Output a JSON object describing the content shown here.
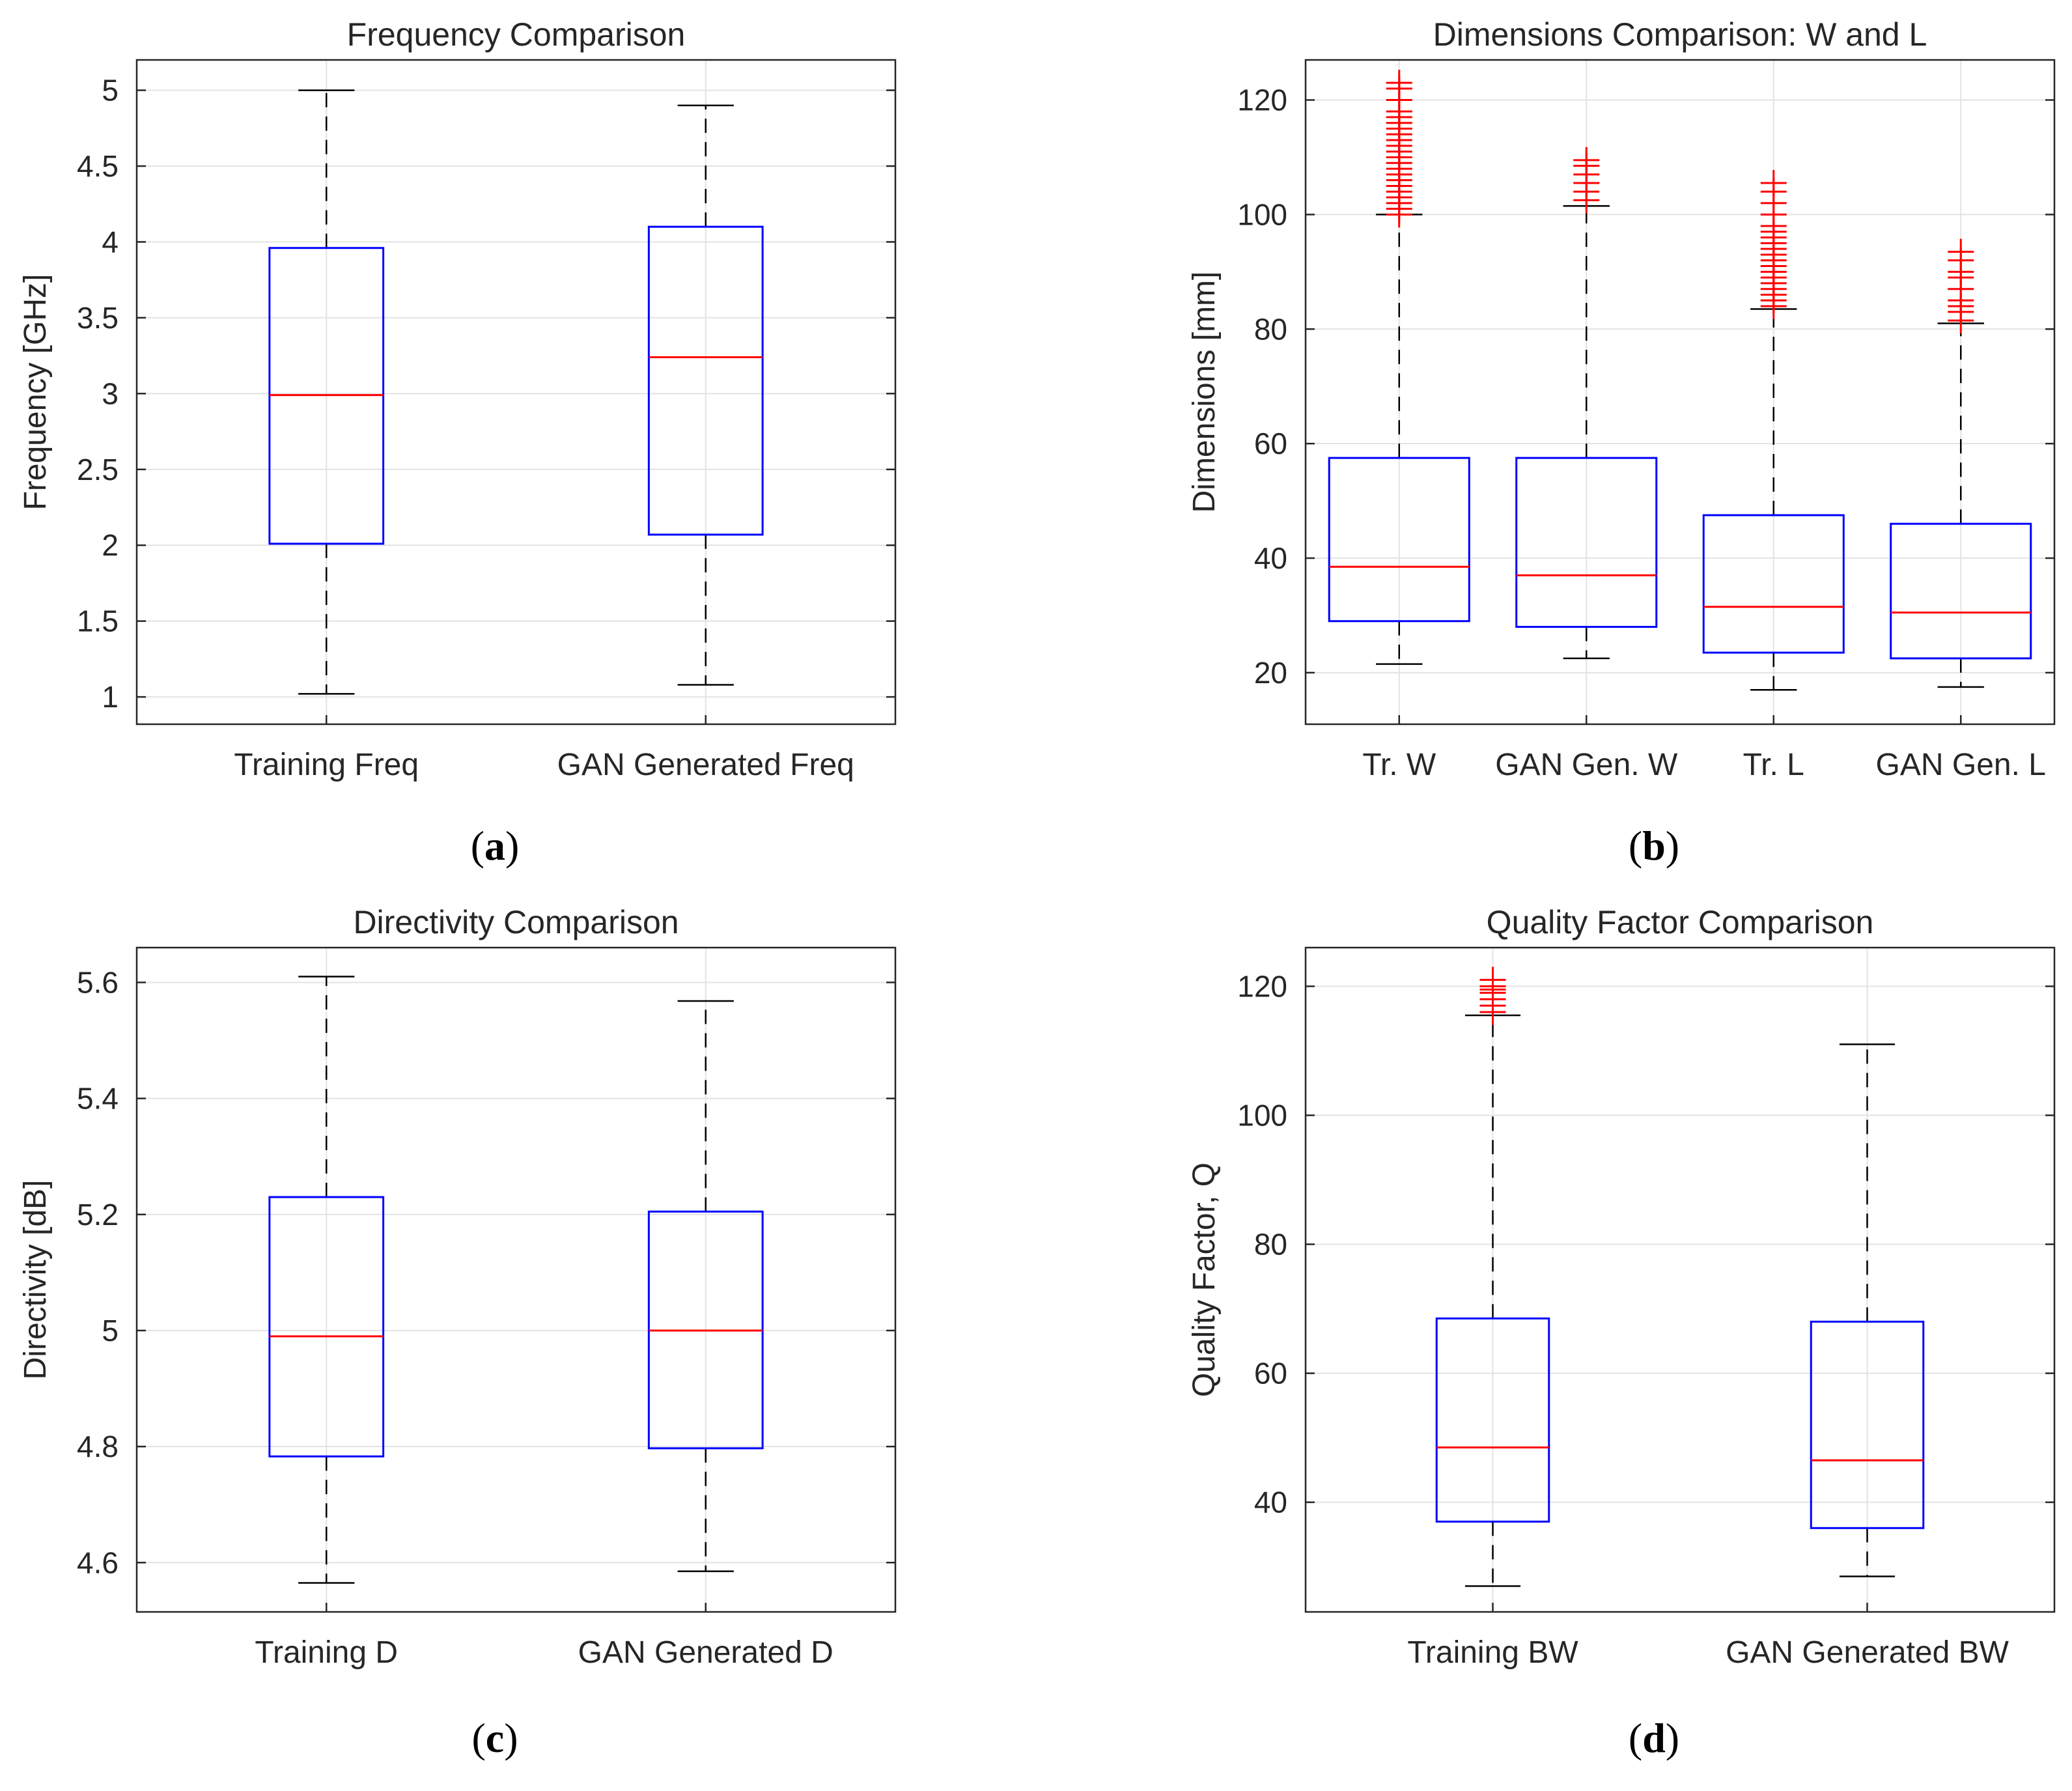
{
  "colors": {
    "box": "#0000ff",
    "median": "#ff0000",
    "outlier": "#ff0000",
    "whisker": "#000000",
    "grid": "#e3e3e3",
    "axes": "#262626"
  },
  "chart_data": [
    {
      "type": "boxplot",
      "title": "Frequency Comparison",
      "ylabel": "Frequency [GHz]",
      "ylim": [
        0.82,
        5.2
      ],
      "yticks": [
        1,
        1.5,
        2,
        2.5,
        3,
        3.5,
        4,
        4.5,
        5
      ],
      "ytick_labels": [
        "1",
        "1.5",
        "2",
        "2.5",
        "3",
        "3.5",
        "4",
        "4.5",
        "5"
      ],
      "grid": true,
      "caption": "a",
      "categories": [
        "Training Freq",
        "GAN Generated Freq"
      ],
      "boxes": [
        {
          "whisker_low": 1.02,
          "q1": 2.01,
          "median": 2.99,
          "q3": 3.96,
          "whisker_high": 5.0,
          "outliers": []
        },
        {
          "whisker_low": 1.08,
          "q1": 2.07,
          "median": 3.24,
          "q3": 4.1,
          "whisker_high": 4.9,
          "outliers": []
        }
      ]
    },
    {
      "type": "boxplot",
      "title": "Dimensions Comparison: W and L",
      "ylabel": "Dimensions [mm]",
      "ylim": [
        11,
        127
      ],
      "yticks": [
        20,
        40,
        60,
        80,
        100,
        120
      ],
      "ytick_labels": [
        "20",
        "40",
        "60",
        "80",
        "100",
        "120"
      ],
      "grid": true,
      "caption": "b",
      "categories": [
        "Tr. W",
        "GAN Gen. W",
        "Tr. L",
        "GAN Gen. L"
      ],
      "boxes": [
        {
          "whisker_low": 21.5,
          "q1": 29,
          "median": 38.5,
          "q3": 57.5,
          "whisker_high": 100,
          "outliers": [
            100,
            101,
            102,
            103,
            104,
            105,
            106,
            107,
            108,
            109,
            110,
            111,
            112,
            113,
            114,
            115,
            116,
            117,
            118,
            120,
            122,
            123
          ]
        },
        {
          "whisker_low": 22.5,
          "q1": 28,
          "median": 37,
          "q3": 57.5,
          "whisker_high": 101.5,
          "outliers": [
            102.5,
            104,
            105.5,
            107,
            108.5,
            109.5
          ]
        },
        {
          "whisker_low": 17,
          "q1": 23.5,
          "median": 31.5,
          "q3": 47.5,
          "whisker_high": 83.5,
          "outliers": [
            84,
            85,
            86,
            87,
            88,
            89,
            90,
            91,
            92,
            93,
            94,
            95,
            96,
            97,
            98,
            100,
            102,
            104,
            105.5
          ]
        },
        {
          "whisker_low": 17.5,
          "q1": 22.5,
          "median": 30.5,
          "q3": 46,
          "whisker_high": 81,
          "outliers": [
            81.5,
            83,
            84,
            85,
            87,
            89,
            90,
            92,
            93.5
          ]
        }
      ]
    },
    {
      "type": "boxplot",
      "title": "Directivity Comparison",
      "ylabel": "Directivity [dB]",
      "ylim": [
        4.515,
        5.66
      ],
      "yticks": [
        4.6,
        4.8,
        5,
        5.2,
        5.4,
        5.6
      ],
      "ytick_labels": [
        "4.6",
        "4.8",
        "5",
        "5.2",
        "5.4",
        "5.6"
      ],
      "grid": true,
      "caption": "c",
      "categories": [
        "Training D",
        "GAN Generated D"
      ],
      "boxes": [
        {
          "whisker_low": 4.565,
          "q1": 4.783,
          "median": 4.99,
          "q3": 5.23,
          "whisker_high": 5.61,
          "outliers": []
        },
        {
          "whisker_low": 4.585,
          "q1": 4.797,
          "median": 5.0,
          "q3": 5.205,
          "whisker_high": 5.568,
          "outliers": []
        }
      ]
    },
    {
      "type": "boxplot",
      "title": "Quality Factor Comparison",
      "ylabel": "Quality Factor, Q",
      "ylim": [
        23,
        126
      ],
      "yticks": [
        40,
        60,
        80,
        100,
        120
      ],
      "ytick_labels": [
        "40",
        "60",
        "80",
        "100",
        "120"
      ],
      "grid": true,
      "caption": "d",
      "categories": [
        "Training BW",
        "GAN Generated BW"
      ],
      "boxes": [
        {
          "whisker_low": 27,
          "q1": 37,
          "median": 48.5,
          "q3": 68.5,
          "whisker_high": 115.5,
          "outliers": [
            116,
            117,
            118,
            119,
            119.5,
            120,
            121
          ]
        },
        {
          "whisker_low": 28.5,
          "q1": 36,
          "median": 46.5,
          "q3": 68,
          "whisker_high": 111,
          "outliers": []
        }
      ]
    }
  ]
}
